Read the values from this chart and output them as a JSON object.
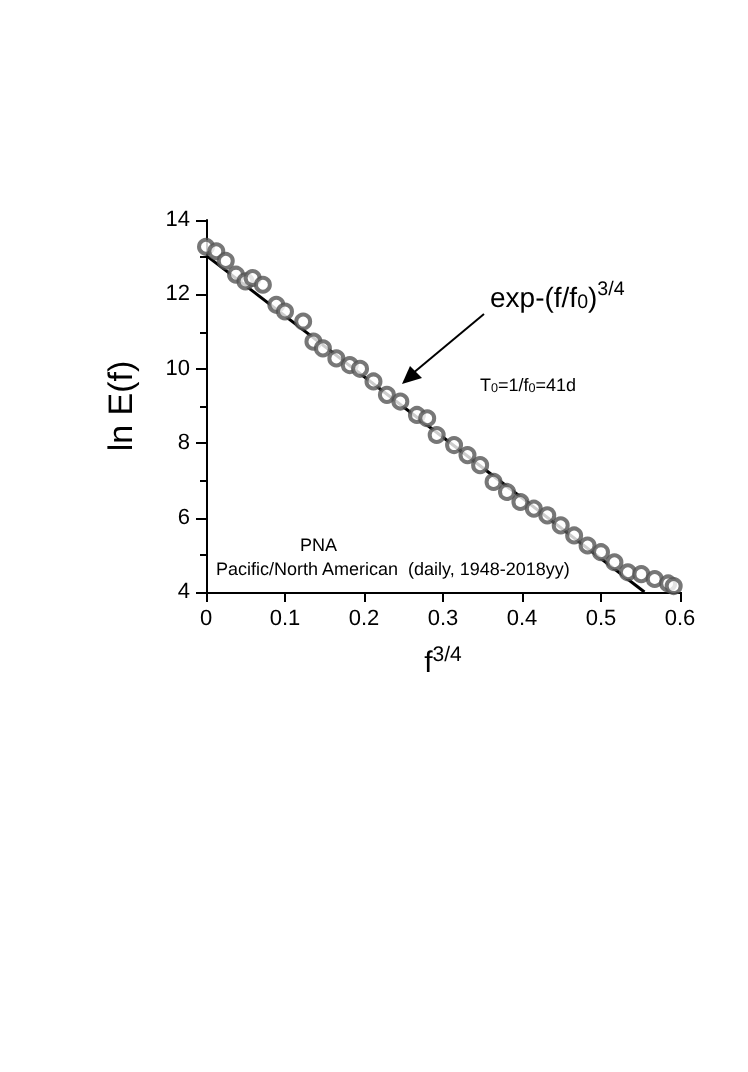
{
  "chart_data": {
    "type": "scatter",
    "xlabel": "f$^{3/4}$",
    "ylabel": "ln E(f)",
    "xlim": [
      0,
      0.6
    ],
    "ylim": [
      4,
      14
    ],
    "xticks": [
      0,
      0.1,
      0.2,
      0.3,
      0.4,
      0.5,
      0.6
    ],
    "yticks": [
      4,
      6,
      8,
      10,
      12,
      14
    ],
    "grid": false,
    "series": [
      {
        "marker": "circle",
        "color": "#555555",
        "x": [
          0,
          0.013,
          0.025,
          0.038,
          0.05,
          0.059,
          0.072,
          0.089,
          0.1,
          0.123,
          0.136,
          0.148,
          0.165,
          0.182,
          0.195,
          0.212,
          0.229,
          0.246,
          0.267,
          0.28,
          0.292,
          0.314,
          0.331,
          0.347,
          0.364,
          0.381,
          0.398,
          0.415,
          0.432,
          0.449,
          0.466,
          0.483,
          0.5,
          0.517,
          0.534,
          0.551,
          0.568,
          0.585,
          0.592
        ],
        "values": [
          13.28,
          13.16,
          12.9,
          12.53,
          12.35,
          12.44,
          12.26,
          11.72,
          11.54,
          11.27,
          10.73,
          10.55,
          10.28,
          10.1,
          10.0,
          9.66,
          9.3,
          9.12,
          8.76,
          8.67,
          8.22,
          7.95,
          7.68,
          7.41,
          6.96,
          6.69,
          6.42,
          6.24,
          6.06,
          5.79,
          5.52,
          5.25,
          5.07,
          4.8,
          4.53,
          4.48,
          4.35,
          4.23,
          4.16
        ]
      },
      {
        "type": "line",
        "marker": "none",
        "color": "#000000",
        "x": [
          0,
          0.555
        ],
        "values": [
          13.05,
          4
        ]
      }
    ],
    "annotations": [
      "exp-(f/f$_{0}$)$^{3/4}$",
      "T$_{0}$=1/f$_{0}$=41d",
      "PNA",
      "Pacific/North American  (daily, 1948-2018yy)"
    ]
  }
}
